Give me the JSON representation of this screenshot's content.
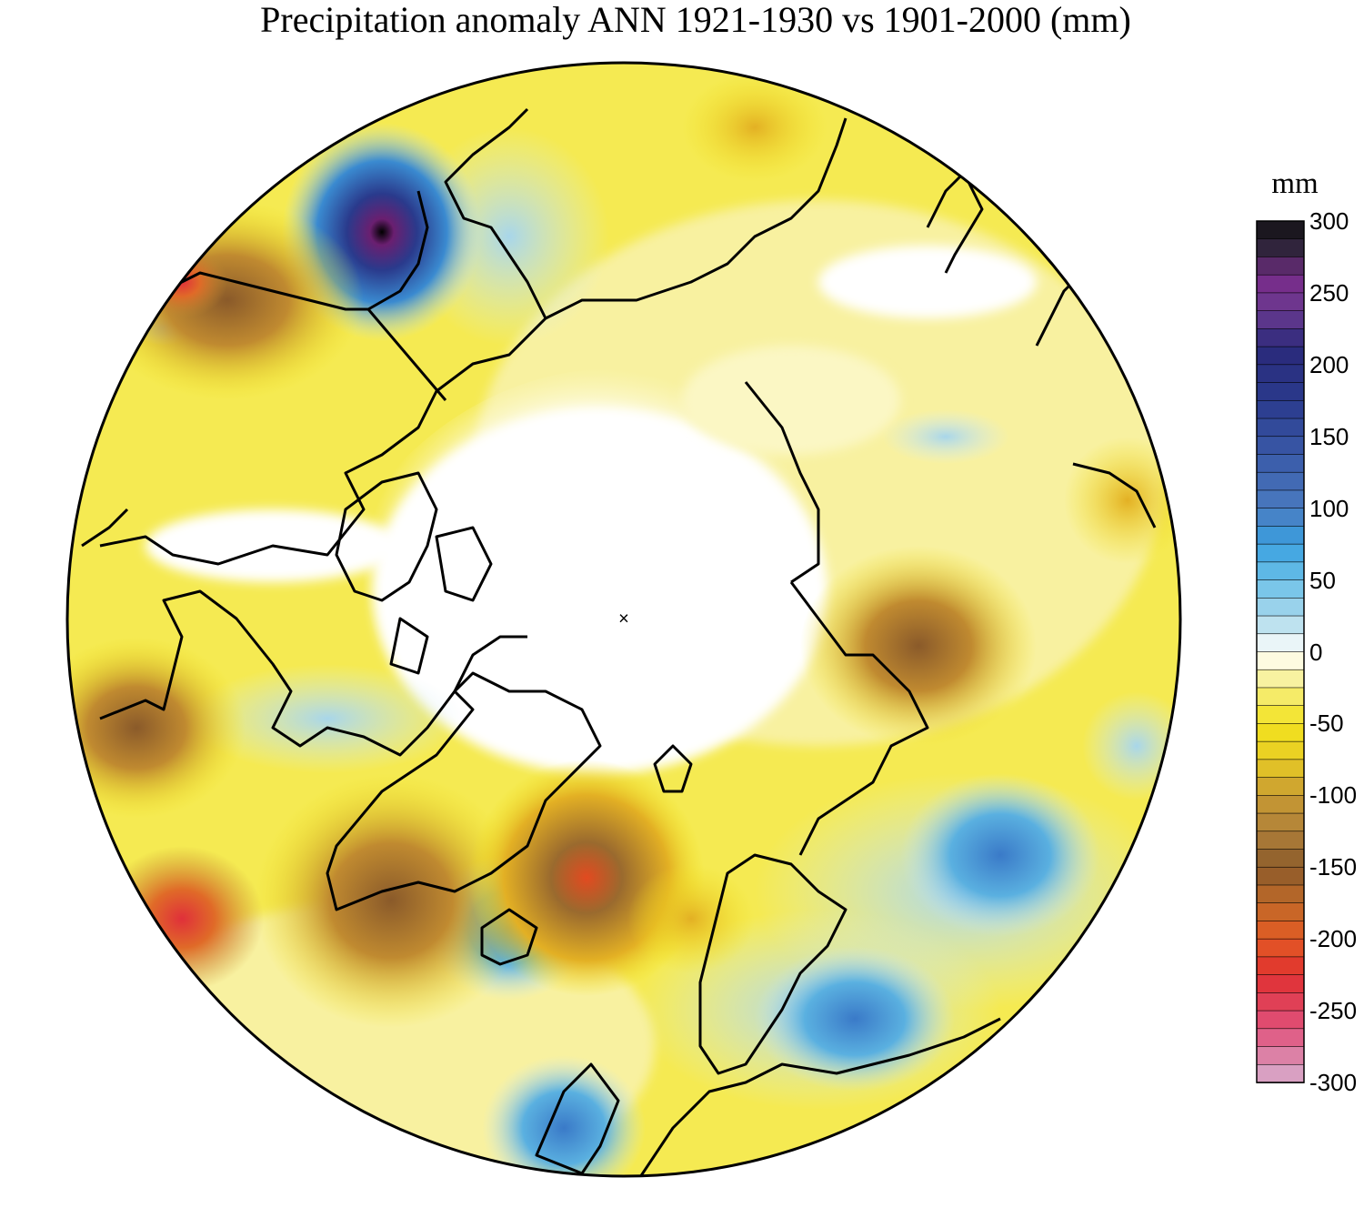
{
  "title": "Precipitation anomaly ANN 1921-1930 vs 1901-2000 (mm)",
  "colorbar": {
    "unit": "mm",
    "min": -300,
    "max": 300,
    "step": 12.5,
    "tick_labels": [
      "300",
      "250",
      "200",
      "150",
      "100",
      "50",
      "0",
      "-50",
      "-100",
      "-150",
      "-200",
      "-250",
      "-300"
    ],
    "tick_values": [
      300,
      250,
      200,
      150,
      100,
      50,
      0,
      -50,
      -100,
      -150,
      -200,
      -250,
      -300
    ]
  },
  "map": {
    "projection": "north polar stereographic",
    "center_marker": "×"
  },
  "colors": {
    "wet_strong": "#000000",
    "wet_purple": "#7a2a8a",
    "wet_darkblue": "#2a3a8c",
    "wet_blue": "#3a9ad8",
    "wet_light": "#cfe8f0",
    "neutral": "#ffffff",
    "dry_light": "#fbf7c4",
    "dry_yellow": "#f2e21e",
    "dry_gold": "#e3b024",
    "dry_brown": "#9a6a2e",
    "dry_orange": "#e25a24",
    "dry_red": "#e0303a",
    "dry_pink": "#d8b0d0"
  }
}
